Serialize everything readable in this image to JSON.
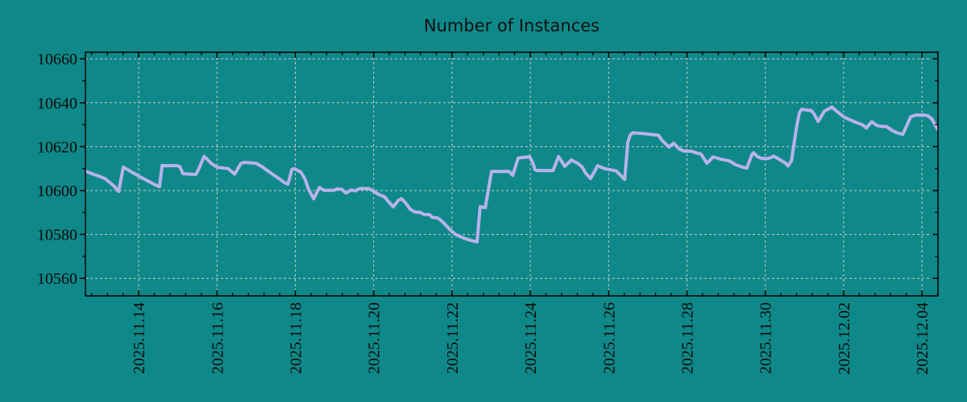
{
  "colors": {
    "background": "#0f8889",
    "line": "#b9b2ea",
    "grid": "#c9cbc9",
    "axis": "#000000",
    "text": "#101010"
  },
  "chart_data": {
    "type": "line",
    "title": "Number of Instances",
    "xlabel": "",
    "ylabel": "",
    "grid": "dashed major gridlines, both axes",
    "legend": "none",
    "x_axis": {
      "unit": "days since 2025-11-12 00:00",
      "xlim": [
        0.64,
        22.41
      ],
      "major_tick_positions": [
        2,
        4,
        6,
        8,
        10,
        12,
        14,
        16,
        18,
        20,
        22
      ],
      "tick_labels": [
        "2025.11.14",
        "2025.11.16",
        "2025.11.18",
        "2025.11.20",
        "2025.11.22",
        "2025.11.24",
        "2025.11.26",
        "2025.11.28",
        "2025.11.30",
        "2025.12.02",
        "2025.12.04"
      ],
      "minor_tick_step": 0.4,
      "label_rotation_deg": -90
    },
    "y_axis": {
      "ylim": [
        10552,
        10663
      ],
      "major_tick_positions": [
        10560,
        10580,
        10600,
        10620,
        10640,
        10660
      ],
      "tick_labels": [
        "10560",
        "10580",
        "10600",
        "10620",
        "10640",
        "10660"
      ],
      "minor_tick_step": 10
    },
    "series": [
      {
        "name": "instances",
        "color": "#b9b2ea",
        "points": [
          [
            0.66,
            10608.7
          ],
          [
            0.83,
            10607.5
          ],
          [
            0.93,
            10606.9
          ],
          [
            1.14,
            10605.5
          ],
          [
            1.24,
            10604.0
          ],
          [
            1.34,
            10602.5
          ],
          [
            1.4,
            10601.5
          ],
          [
            1.49,
            10599.6
          ],
          [
            1.61,
            10610.7
          ],
          [
            1.86,
            10608.0
          ],
          [
            2.04,
            10606.2
          ],
          [
            2.23,
            10604.4
          ],
          [
            2.43,
            10602.5
          ],
          [
            2.53,
            10601.8
          ],
          [
            2.6,
            10611.5
          ],
          [
            2.68,
            10611.3
          ],
          [
            2.99,
            10611.3
          ],
          [
            3.05,
            10610.9
          ],
          [
            3.13,
            10607.7
          ],
          [
            3.46,
            10607.3
          ],
          [
            3.54,
            10610.0
          ],
          [
            3.67,
            10615.6
          ],
          [
            3.85,
            10612.4
          ],
          [
            4.0,
            10610.6
          ],
          [
            4.28,
            10610.0
          ],
          [
            4.45,
            10607.5
          ],
          [
            4.61,
            10612.3
          ],
          [
            4.7,
            10612.8
          ],
          [
            5.0,
            10612.4
          ],
          [
            5.17,
            10610.6
          ],
          [
            5.37,
            10608.0
          ],
          [
            5.58,
            10605.5
          ],
          [
            5.72,
            10603.6
          ],
          [
            5.81,
            10602.9
          ],
          [
            5.91,
            10609.5
          ],
          [
            5.97,
            10610.0
          ],
          [
            6.14,
            10608.4
          ],
          [
            6.24,
            10605.5
          ],
          [
            6.34,
            10600.5
          ],
          [
            6.47,
            10596.2
          ],
          [
            6.61,
            10601.4
          ],
          [
            6.73,
            10600.1
          ],
          [
            6.98,
            10600.1
          ],
          [
            7.08,
            10600.8
          ],
          [
            7.19,
            10600.5
          ],
          [
            7.29,
            10598.9
          ],
          [
            7.43,
            10600.3
          ],
          [
            7.53,
            10599.8
          ],
          [
            7.64,
            10600.9
          ],
          [
            7.88,
            10600.9
          ],
          [
            8.01,
            10599.5
          ],
          [
            8.13,
            10598.2
          ],
          [
            8.28,
            10597.1
          ],
          [
            8.4,
            10594.5
          ],
          [
            8.5,
            10592.6
          ],
          [
            8.63,
            10595.5
          ],
          [
            8.71,
            10596.3
          ],
          [
            8.83,
            10594.1
          ],
          [
            8.93,
            10591.5
          ],
          [
            9.06,
            10590.2
          ],
          [
            9.2,
            10590.0
          ],
          [
            9.28,
            10589.1
          ],
          [
            9.43,
            10589.0
          ],
          [
            9.49,
            10587.8
          ],
          [
            9.63,
            10587.5
          ],
          [
            9.7,
            10586.7
          ],
          [
            9.8,
            10585.0
          ],
          [
            9.9,
            10583.1
          ],
          [
            10.0,
            10581.3
          ],
          [
            10.11,
            10579.8
          ],
          [
            10.21,
            10579.0
          ],
          [
            10.35,
            10578.0
          ],
          [
            10.48,
            10577.3
          ],
          [
            10.6,
            10576.8
          ],
          [
            10.64,
            10576.6
          ],
          [
            10.72,
            10592.6
          ],
          [
            10.85,
            10592.2
          ],
          [
            11.01,
            10608.7
          ],
          [
            11.46,
            10608.7
          ],
          [
            11.55,
            10606.9
          ],
          [
            11.69,
            10614.8
          ],
          [
            11.98,
            10615.4
          ],
          [
            12.06,
            10612.8
          ],
          [
            12.12,
            10609.5
          ],
          [
            12.16,
            10609.1
          ],
          [
            12.58,
            10609.1
          ],
          [
            12.72,
            10615.5
          ],
          [
            12.88,
            10611.0
          ],
          [
            13.05,
            10613.9
          ],
          [
            13.21,
            10612.4
          ],
          [
            13.33,
            10610.6
          ],
          [
            13.41,
            10608.0
          ],
          [
            13.54,
            10605.5
          ],
          [
            13.72,
            10611.3
          ],
          [
            13.89,
            10610.0
          ],
          [
            14.1,
            10609.3
          ],
          [
            14.2,
            10608.9
          ],
          [
            14.3,
            10607.0
          ],
          [
            14.41,
            10605.1
          ],
          [
            14.49,
            10622.0
          ],
          [
            14.55,
            10625.2
          ],
          [
            14.61,
            10626.3
          ],
          [
            14.86,
            10626.0
          ],
          [
            15.27,
            10625.2
          ],
          [
            15.37,
            10622.7
          ],
          [
            15.48,
            10620.9
          ],
          [
            15.54,
            10619.8
          ],
          [
            15.66,
            10621.6
          ],
          [
            15.79,
            10619.1
          ],
          [
            15.91,
            10618.0
          ],
          [
            16.12,
            10617.9
          ],
          [
            16.22,
            10617.2
          ],
          [
            16.36,
            10616.6
          ],
          [
            16.51,
            10612.4
          ],
          [
            16.67,
            10615.3
          ],
          [
            16.73,
            10615.0
          ],
          [
            16.88,
            10614.2
          ],
          [
            17.08,
            10613.5
          ],
          [
            17.25,
            10611.7
          ],
          [
            17.43,
            10610.6
          ],
          [
            17.53,
            10610.2
          ],
          [
            17.66,
            10616.5
          ],
          [
            17.7,
            10617.2
          ],
          [
            17.8,
            10615.4
          ],
          [
            17.91,
            10614.6
          ],
          [
            18.07,
            10614.6
          ],
          [
            18.17,
            10615.2
          ],
          [
            18.21,
            10615.7
          ],
          [
            18.32,
            10614.6
          ],
          [
            18.42,
            10613.5
          ],
          [
            18.52,
            10612.4
          ],
          [
            18.58,
            10611.2
          ],
          [
            18.67,
            10613.5
          ],
          [
            18.73,
            10620.9
          ],
          [
            18.79,
            10628.1
          ],
          [
            18.87,
            10635.5
          ],
          [
            18.93,
            10637.0
          ],
          [
            19.18,
            10636.4
          ],
          [
            19.24,
            10635.1
          ],
          [
            19.35,
            10631.5
          ],
          [
            19.51,
            10636.2
          ],
          [
            19.7,
            10638.0
          ],
          [
            19.82,
            10636.2
          ],
          [
            20.0,
            10633.6
          ],
          [
            20.13,
            10632.5
          ],
          [
            20.31,
            10631.1
          ],
          [
            20.48,
            10630.0
          ],
          [
            20.58,
            10628.5
          ],
          [
            20.72,
            10631.4
          ],
          [
            20.85,
            10629.6
          ],
          [
            20.99,
            10629.2
          ],
          [
            21.09,
            10629.2
          ],
          [
            21.24,
            10627.4
          ],
          [
            21.36,
            10626.3
          ],
          [
            21.51,
            10625.6
          ],
          [
            21.65,
            10631.1
          ],
          [
            21.71,
            10633.6
          ],
          [
            21.84,
            10634.4
          ],
          [
            22.06,
            10634.4
          ],
          [
            22.16,
            10634.0
          ],
          [
            22.26,
            10632.5
          ],
          [
            22.39,
            10628.1
          ]
        ]
      }
    ]
  }
}
